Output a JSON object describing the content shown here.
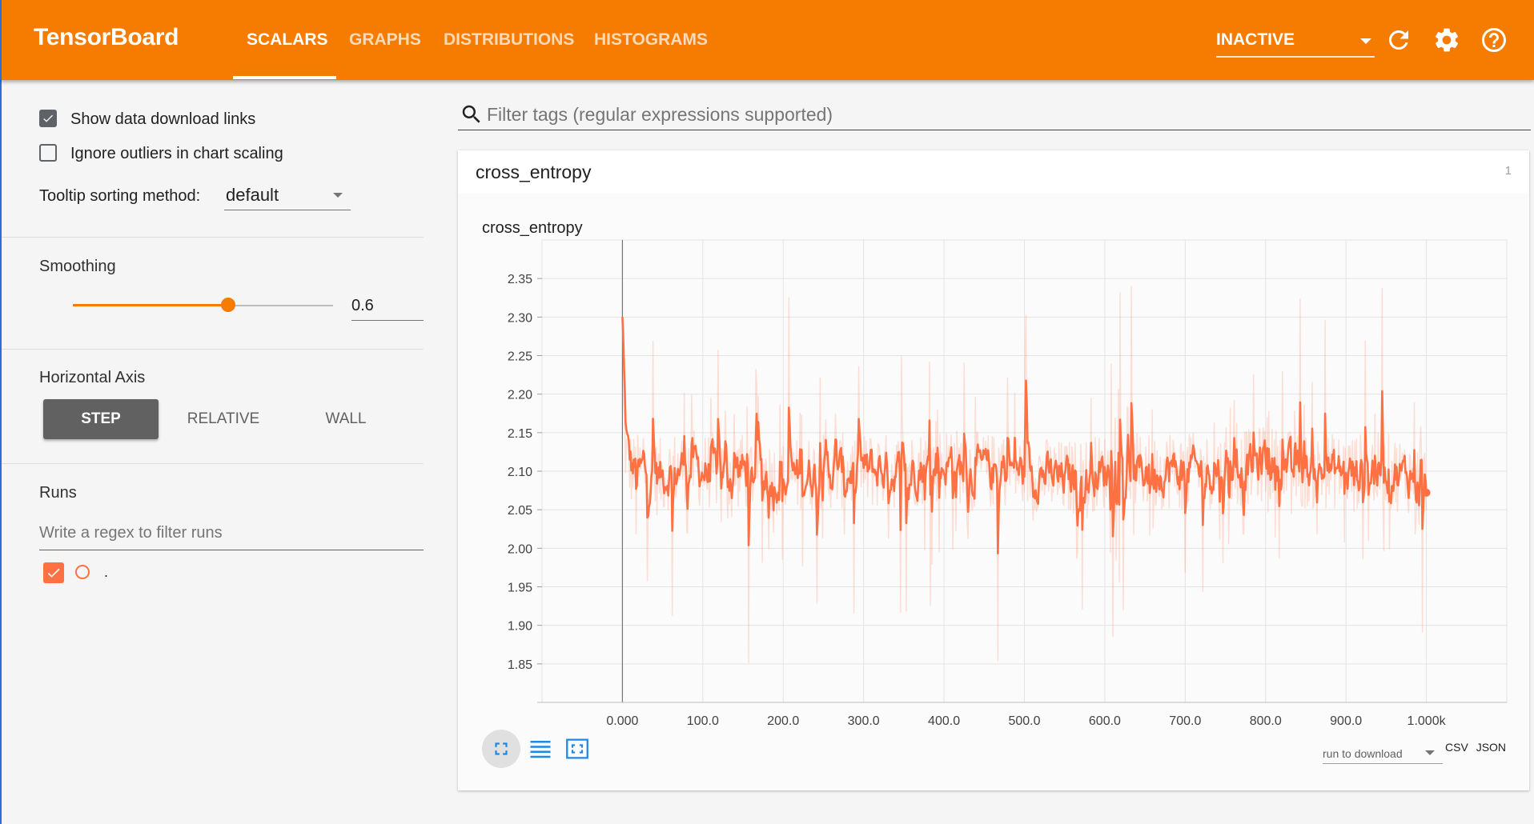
{
  "header": {
    "brand": "TensorBoard",
    "tabs": [
      {
        "label": "SCALARS",
        "active": true
      },
      {
        "label": "GRAPHS",
        "active": false
      },
      {
        "label": "DISTRIBUTIONS",
        "active": false
      },
      {
        "label": "HISTOGRAMS",
        "active": false
      }
    ],
    "dashboard_select": "INACTIVE",
    "icons": [
      "reload-icon",
      "settings-icon",
      "help-icon"
    ],
    "accent_color": "#f57c00"
  },
  "sidebar": {
    "show_download_links": {
      "label": "Show data download links",
      "checked": true
    },
    "ignore_outliers": {
      "label": "Ignore outliers in chart scaling",
      "checked": false
    },
    "tooltip_sorting": {
      "label": "Tooltip sorting method:",
      "value": "default"
    },
    "smoothing": {
      "title": "Smoothing",
      "value": "0.6",
      "fraction": 0.6
    },
    "horizontal_axis": {
      "title": "Horizontal Axis",
      "options": [
        "STEP",
        "RELATIVE",
        "WALL"
      ],
      "selected": "STEP"
    },
    "runs": {
      "title": "Runs",
      "filter_placeholder": "Write a regex to filter runs",
      "items": [
        {
          "name": ".",
          "checked": true,
          "color": "#ff7043"
        }
      ]
    }
  },
  "main": {
    "tag_filter_placeholder": "Filter tags (regular expressions supported)",
    "category": {
      "name": "cross_entropy",
      "count": "1"
    },
    "run_to_download": "run to download",
    "download_links": [
      "CSV",
      "JSON"
    ]
  },
  "chart_data": {
    "type": "line",
    "title": "cross_entropy",
    "xlabel": "",
    "ylabel": "",
    "x_ticks": [
      "0.000",
      "100.0",
      "200.0",
      "300.0",
      "400.0",
      "500.0",
      "600.0",
      "700.0",
      "800.0",
      "900.0",
      "1.000k"
    ],
    "y_ticks": [
      "2.35",
      "2.30",
      "2.25",
      "2.20",
      "2.15",
      "2.10",
      "2.05",
      "2.00",
      "1.95",
      "1.90",
      "1.85"
    ],
    "xlim": [
      -100,
      1100
    ],
    "ylim": [
      1.8,
      2.4
    ],
    "grid": true,
    "series": [
      {
        "color": "#ff7043",
        "smoothing": 0.6,
        "raw_range": [
          1.85,
          2.34
        ],
        "x": [
          0,
          1,
          2,
          3,
          5,
          8,
          12,
          20,
          40,
          60,
          80,
          100,
          150,
          200,
          250,
          300,
          350,
          400,
          450,
          500,
          550,
          600,
          650,
          700,
          750,
          800,
          850,
          900,
          950,
          1000
        ],
        "values": [
          2.3,
          2.24,
          2.18,
          2.14,
          2.12,
          2.11,
          2.1,
          2.1,
          2.09,
          2.1,
          2.11,
          2.1,
          2.1,
          2.09,
          2.1,
          2.1,
          2.1,
          2.11,
          2.1,
          2.1,
          2.09,
          2.1,
          2.1,
          2.1,
          2.1,
          2.11,
          2.1,
          2.1,
          2.1,
          2.09
        ]
      }
    ]
  }
}
